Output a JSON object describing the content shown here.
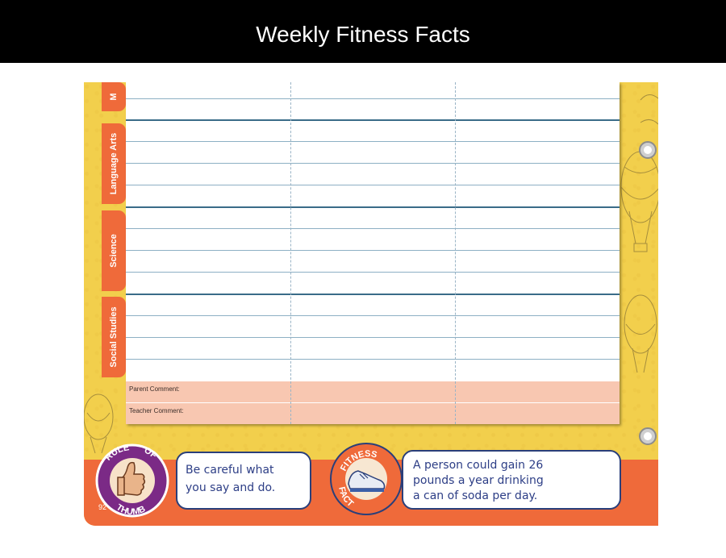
{
  "header": {
    "title": "Weekly Fitness Facts"
  },
  "tabs": [
    {
      "label": "M"
    },
    {
      "label": "Language Arts"
    },
    {
      "label": "Science"
    },
    {
      "label": "Social Studies"
    }
  ],
  "planner": {
    "parent_comment_label": "Parent Comment:",
    "teacher_comment_label": "Teacher Comment:"
  },
  "rule_of_thumb": {
    "badge_top": "RULE",
    "badge_of": "OF",
    "badge_bottom": "THUMB",
    "text_line1": "Be careful what",
    "text_line2": "you say and do."
  },
  "fitness_fact": {
    "badge_top": "FITNESS",
    "badge_bottom": "FACT",
    "text_line1": "A person could gain 26",
    "text_line2": "pounds a year drinking",
    "text_line3": "a can of soda per day."
  },
  "footer": {
    "page_number": "92"
  },
  "colors": {
    "page_yellow": "#f2cf4c",
    "accent_orange": "#ef6a3a",
    "comment_pink": "#f8c7b1",
    "ink_blue": "#2d3e86",
    "badge_purple": "#7b2a86"
  }
}
